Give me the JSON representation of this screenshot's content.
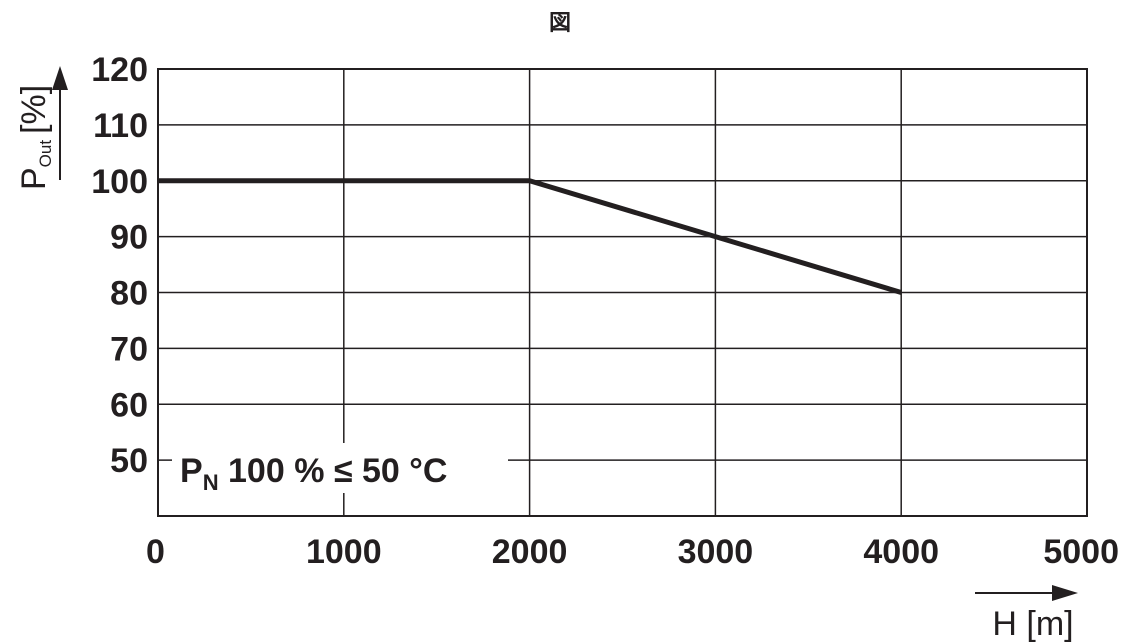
{
  "chart_data": {
    "type": "line",
    "title": "図",
    "xlabel": "H [m]",
    "ylabel_main": "P",
    "ylabel_sub": "Out",
    "ylabel_unit": "[%]",
    "xlim": [
      0,
      5000
    ],
    "ylim": [
      40,
      120
    ],
    "x_ticks": [
      0,
      1000,
      2000,
      3000,
      4000,
      5000
    ],
    "y_ticks": [
      50,
      60,
      70,
      80,
      90,
      100,
      110,
      120
    ],
    "grid": true,
    "series": [
      {
        "x": [
          0,
          2000,
          3000,
          4000
        ],
        "y": [
          100,
          100,
          90,
          80
        ]
      }
    ],
    "annotation": {
      "prefix": "P",
      "subscript": "N",
      "text": " 100 % ≤ 50 °C"
    }
  }
}
